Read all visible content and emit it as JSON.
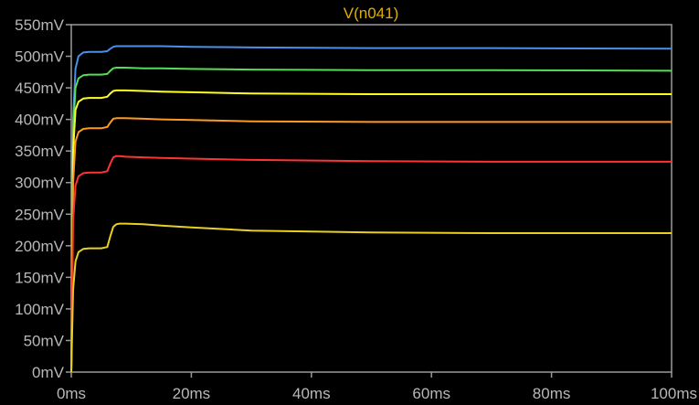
{
  "chart_data": {
    "type": "line",
    "title": "V(n041)",
    "xlabel": "",
    "ylabel": "",
    "xlim": [
      0,
      100
    ],
    "ylim": [
      0,
      550
    ],
    "x_ticks": [
      0,
      20,
      40,
      60,
      80,
      100
    ],
    "x_tick_labels": [
      "0ms",
      "20ms",
      "40ms",
      "60ms",
      "80ms",
      "100ms"
    ],
    "y_ticks": [
      0,
      50,
      100,
      150,
      200,
      250,
      300,
      350,
      400,
      450,
      500,
      550
    ],
    "y_tick_labels": [
      "0mV",
      "50mV",
      "100mV",
      "150mV",
      "200mV",
      "250mV",
      "300mV",
      "350mV",
      "400mV",
      "450mV",
      "500mV",
      "550mV"
    ],
    "grid": false,
    "background": "#000000",
    "axis_color": "#9a9a9a",
    "series": [
      {
        "color": "#4a8fe8",
        "x": [
          0,
          0.3,
          0.7,
          1.2,
          2,
          3,
          5,
          6,
          6.5,
          7,
          7.5,
          8,
          9,
          12,
          15,
          20,
          30,
          50,
          70,
          100
        ],
        "y": [
          0,
          400,
          480,
          500,
          506,
          507,
          507,
          508,
          512,
          515,
          516,
          516,
          516,
          516,
          516,
          515,
          514,
          513,
          513,
          512
        ]
      },
      {
        "color": "#55dd55",
        "x": [
          0,
          0.3,
          0.7,
          1.2,
          2,
          3,
          5,
          6,
          6.5,
          7,
          7.5,
          8,
          9,
          12,
          15,
          20,
          30,
          50,
          70,
          100
        ],
        "y": [
          0,
          380,
          450,
          465,
          470,
          471,
          471,
          472,
          477,
          481,
          482,
          482,
          482,
          481,
          481,
          480,
          479,
          478,
          478,
          477
        ]
      },
      {
        "color": "#ffff22",
        "x": [
          0,
          0.3,
          0.7,
          1.2,
          2,
          3,
          5,
          6,
          6.5,
          7,
          7.5,
          8,
          9,
          12,
          15,
          20,
          30,
          50,
          70,
          100
        ],
        "y": [
          0,
          350,
          415,
          428,
          433,
          434,
          434,
          436,
          441,
          445,
          446,
          446,
          446,
          445,
          444,
          443,
          441,
          440,
          440,
          440
        ]
      },
      {
        "color": "#ff9922",
        "x": [
          0,
          0.3,
          0.7,
          1.2,
          2,
          3,
          5,
          6,
          6.5,
          7,
          7.5,
          8,
          9,
          12,
          15,
          20,
          30,
          50,
          70,
          100
        ],
        "y": [
          0,
          300,
          365,
          380,
          385,
          386,
          386,
          388,
          395,
          401,
          402,
          402,
          402,
          401,
          400,
          399,
          397,
          396,
          396,
          396
        ]
      },
      {
        "color": "#ff3333",
        "x": [
          0,
          0.3,
          0.7,
          1.2,
          2,
          3,
          5,
          6,
          6.5,
          7,
          7.5,
          8,
          9,
          12,
          15,
          20,
          30,
          50,
          70,
          100
        ],
        "y": [
          0,
          240,
          295,
          310,
          315,
          316,
          316,
          318,
          330,
          340,
          342,
          342,
          341,
          340,
          339,
          338,
          336,
          334,
          333,
          333
        ]
      },
      {
        "color": "#e8d020",
        "x": [
          0,
          0.3,
          0.7,
          1.2,
          2,
          3,
          5,
          6,
          6.5,
          7,
          7.5,
          8,
          9,
          12,
          15,
          20,
          30,
          50,
          70,
          100
        ],
        "y": [
          0,
          130,
          175,
          190,
          195,
          196,
          196,
          198,
          215,
          230,
          234,
          235,
          235,
          234,
          232,
          229,
          224,
          221,
          220,
          220
        ]
      }
    ]
  }
}
